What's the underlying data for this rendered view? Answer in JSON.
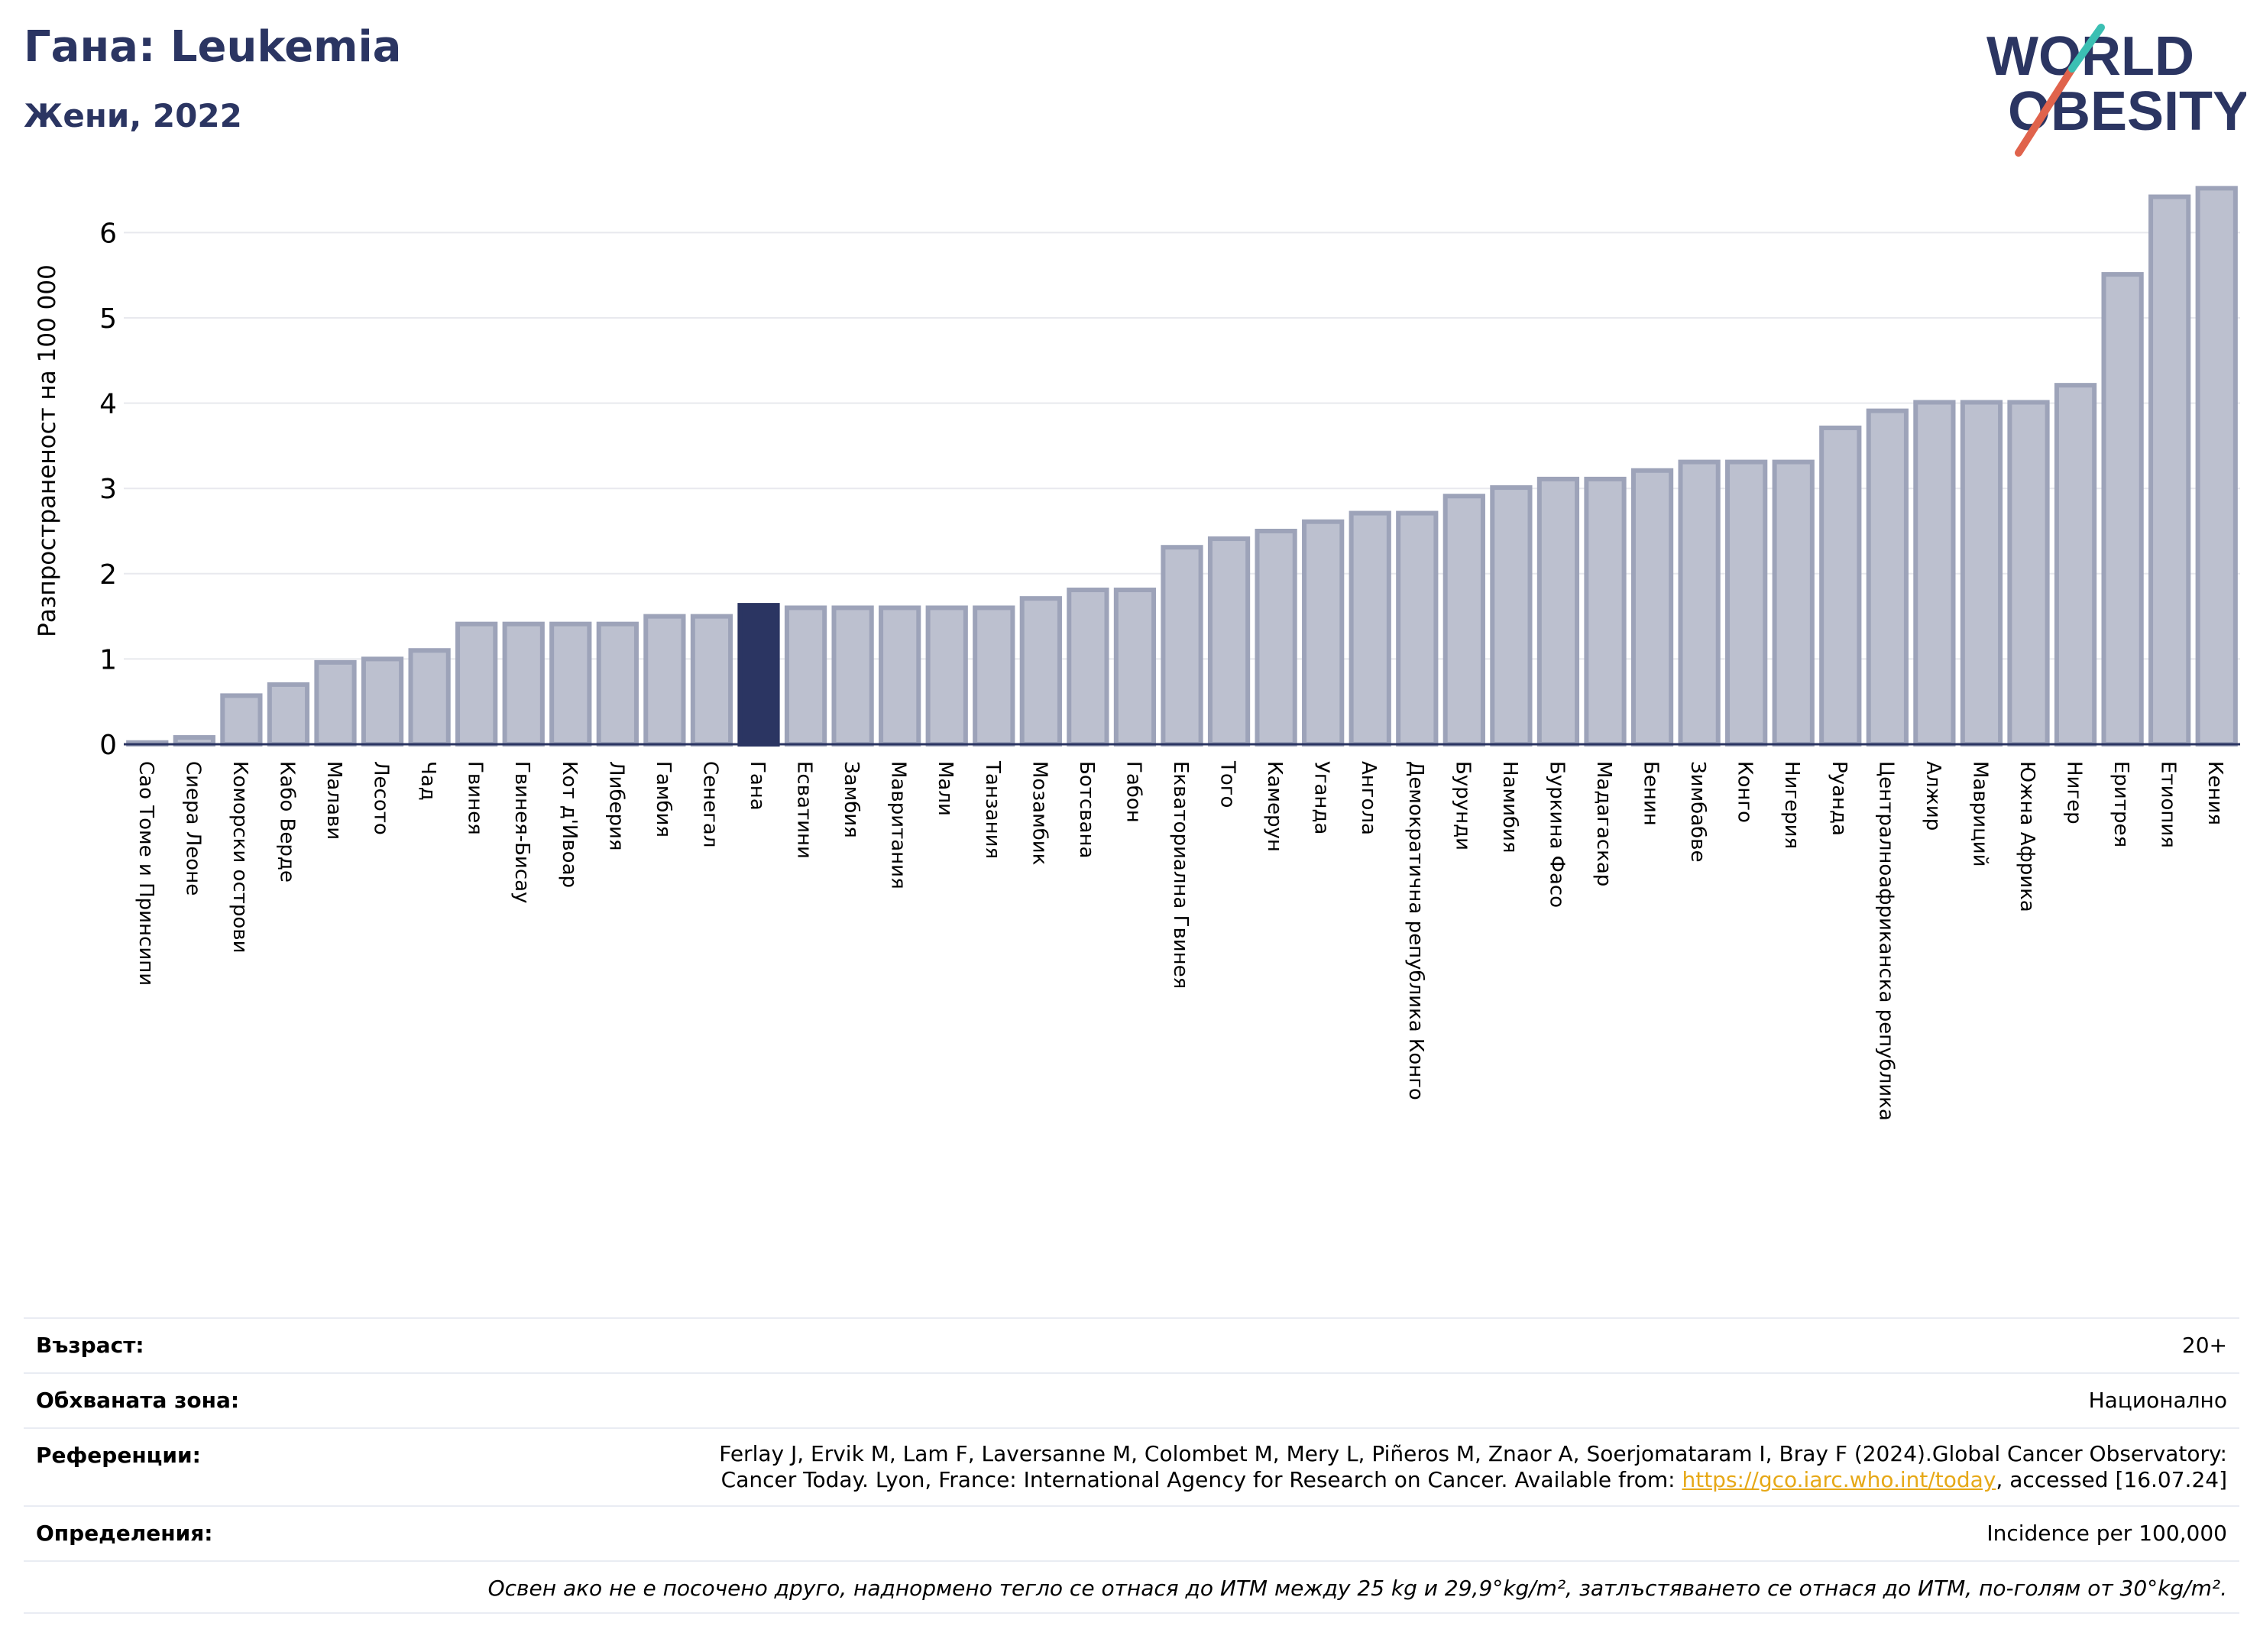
{
  "title": "Гана: Leukemia",
  "subtitle": "Жени, 2022",
  "logo": {
    "line1": "WORLD",
    "line2": "OBESITY",
    "accent_color": "#e0634c",
    "accent_color2": "#3bbfb3",
    "text_color": "#2b3562"
  },
  "colors": {
    "highlight": "#2b3562",
    "bar_fill": "#bcc0cf",
    "bar_stroke": "#9da3b9",
    "grid": "#e8e9ee",
    "axis": "#2b3562"
  },
  "chart_data": {
    "type": "bar",
    "ylabel": "Разпространеност  на 100 000",
    "ylim": [
      0,
      6.6
    ],
    "yticks": [
      0,
      1,
      2,
      3,
      4,
      5,
      6
    ],
    "grid": true,
    "highlight": "Гана",
    "categories": [
      "Сао Томе и Принсипи",
      "Сиера Леоне",
      "Коморски острови",
      "Кабо Верде",
      "Малави",
      "Лесото",
      "Чад",
      "Гвинея",
      "Гвинея-Бисау",
      "Кот д'Ивоар",
      "Либерия",
      "Гамбия",
      "Сенегал",
      "Гана",
      "Есватини",
      "Замбия",
      "Мавритания",
      "Мали",
      "Танзания",
      "Мозамбик",
      "Ботсвана",
      "Габон",
      "Екваториална Гвинея",
      "Того",
      "Камерун",
      "Уганда",
      "Ангола",
      "Демократична република Конго",
      "Бурунди",
      "Намибия",
      "Буркина Фасо",
      "Мадагаскар",
      "Бенин",
      "Зимбабве",
      "Конго",
      "Нигерия",
      "Руанда",
      "Централноафриканска република",
      "Алжир",
      "Мавриций",
      "Южна Африка",
      "Нигер",
      "Еритрея",
      "Етиопия",
      "Кения"
    ],
    "values": [
      0.02,
      0.08,
      0.57,
      0.7,
      0.96,
      1.0,
      1.1,
      1.41,
      1.41,
      1.41,
      1.41,
      1.5,
      1.5,
      1.63,
      1.6,
      1.6,
      1.6,
      1.6,
      1.6,
      1.71,
      1.81,
      1.81,
      2.31,
      2.41,
      2.5,
      2.61,
      2.71,
      2.71,
      2.91,
      3.01,
      3.11,
      3.11,
      3.21,
      3.31,
      3.31,
      3.31,
      3.71,
      3.91,
      4.01,
      4.01,
      4.01,
      4.21,
      5.51,
      6.42,
      6.52
    ]
  },
  "info": {
    "age_label": "Възраст:",
    "age_value": "20+",
    "coverage_label": "Обхваната зона:",
    "coverage_value": "Национално",
    "references_label": "Референции:",
    "references_line1": "Ferlay J, Ervik M, Lam F, Laversanne M, Colombet M, Mery L, Piñeros M, Znaor A, Soerjomataram I, Bray F (2024).Global Cancer Observatory:",
    "references_line2_prefix": "Cancer Today. Lyon, France: International Agency for Research on Cancer. Available from: ",
    "references_link": "https://gco.iarc.who.int/today",
    "references_line2_suffix": ", accessed [16.07.24]",
    "definitions_label": "Определения:",
    "definitions_value": "Incidence per 100,000",
    "footnote": "Освен ако не е посочено друго, наднормено тегло се отнася до ИТМ между 25 kg и 29,9°kg/m², затлъстяването се отнася до ИТМ, по-голям от 30°kg/m²."
  }
}
